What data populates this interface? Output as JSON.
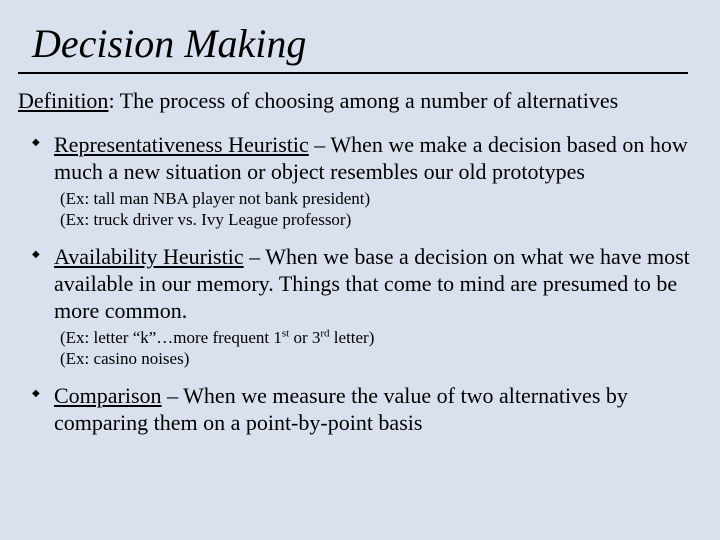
{
  "background_color": "#d9e0ee",
  "text_color": "#000000",
  "title": "Decision Making",
  "definition_label": "Definition",
  "definition_text": ": The process of choosing among a number of alternatives",
  "items": [
    {
      "term": "Representativeness Heuristic",
      "rest": " – When we make a decision based on how much a new situation or object resembles our old prototypes",
      "ex1": "(Ex: tall man NBA player not bank president)",
      "ex2": "(Ex: truck driver vs. Ivy League professor)"
    },
    {
      "term": "Availability Heuristic",
      "rest": " – When we base a decision on what we have most available in our memory. Things that come to mind are presumed to be more common.",
      "ex1_a": "(Ex: letter “k”…more frequent 1",
      "ex1_sup1": "st",
      "ex1_b": " or 3",
      "ex1_sup2": "rd",
      "ex1_c": " letter)",
      "ex2": "(Ex: casino noises)"
    },
    {
      "term": "Comparison",
      "rest": " – When we measure the value of two alternatives by comparing them on a point-by-point basis"
    }
  ]
}
